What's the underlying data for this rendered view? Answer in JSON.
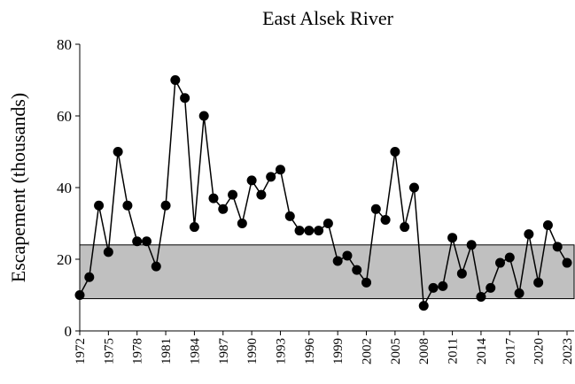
{
  "chart_data": {
    "type": "line",
    "title": "East Alsek River",
    "y_label": "Escapement (thousands)",
    "x": [
      1972,
      1973,
      1974,
      1975,
      1976,
      1977,
      1978,
      1979,
      1980,
      1981,
      1982,
      1983,
      1984,
      1985,
      1986,
      1987,
      1988,
      1989,
      1990,
      1991,
      1992,
      1993,
      1994,
      1995,
      1996,
      1997,
      1998,
      1999,
      2000,
      2001,
      2002,
      2003,
      2004,
      2005,
      2006,
      2007,
      2008,
      2009,
      2010,
      2011,
      2012,
      2013,
      2014,
      2015,
      2016,
      2017,
      2018,
      2019,
      2020,
      2021,
      2022,
      2023
    ],
    "series": [
      {
        "name": "Escapement",
        "color": "#000000",
        "values": [
          10,
          15,
          35,
          22,
          50,
          35,
          25,
          25,
          18,
          35,
          70,
          65,
          29,
          60,
          37,
          34,
          38,
          30,
          42,
          38,
          43,
          45,
          32,
          28,
          28,
          28,
          30,
          19.5,
          21,
          17,
          13.5,
          34,
          31,
          50,
          29,
          40,
          7,
          12,
          12.5,
          26,
          16,
          24,
          9.5,
          12,
          19,
          20.5,
          10.5,
          27,
          13.5,
          29.5,
          23.5,
          19
        ]
      }
    ],
    "goal_range": [
      9,
      24
    ],
    "goal_color": "#c0c0c0",
    "xlim": [
      1972,
      2023
    ],
    "xticks": [
      1972,
      1975,
      1978,
      1981,
      1984,
      1987,
      1990,
      1993,
      1996,
      1999,
      2002,
      2005,
      2008,
      2011,
      2014,
      2017,
      2020,
      2023
    ],
    "ylim": [
      0,
      80
    ],
    "yticks": [
      0,
      20,
      40,
      60,
      80
    ]
  }
}
